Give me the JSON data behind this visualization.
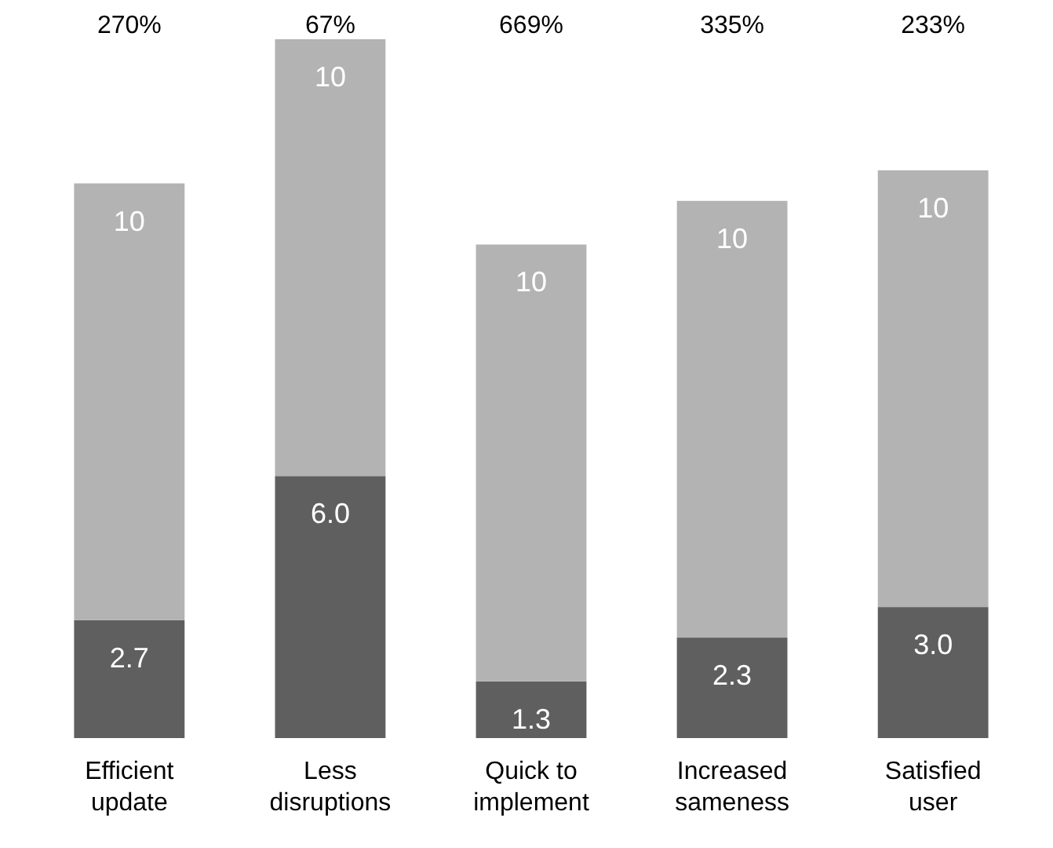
{
  "chart_data": {
    "type": "bar",
    "categories": [
      "Efficient update",
      "Less disruptions",
      "Quick to implement",
      "Increased sameness",
      "Satisfied user"
    ],
    "series": [
      {
        "color": "#5f5f5f",
        "values": [
          2.7,
          6.0,
          1.3,
          2.3,
          3.0
        ],
        "value_labels": [
          "2.7",
          "6.0",
          "1.3",
          "2.3",
          "3.0"
        ]
      },
      {
        "color": "#b3b3b3",
        "values": [
          10,
          10,
          10,
          10,
          10
        ],
        "value_labels": [
          "10",
          "10",
          "10",
          "10",
          "10"
        ]
      }
    ],
    "stacked": true,
    "annotations": [
      "270%",
      "67%",
      "669%",
      "335%",
      "233%"
    ]
  }
}
